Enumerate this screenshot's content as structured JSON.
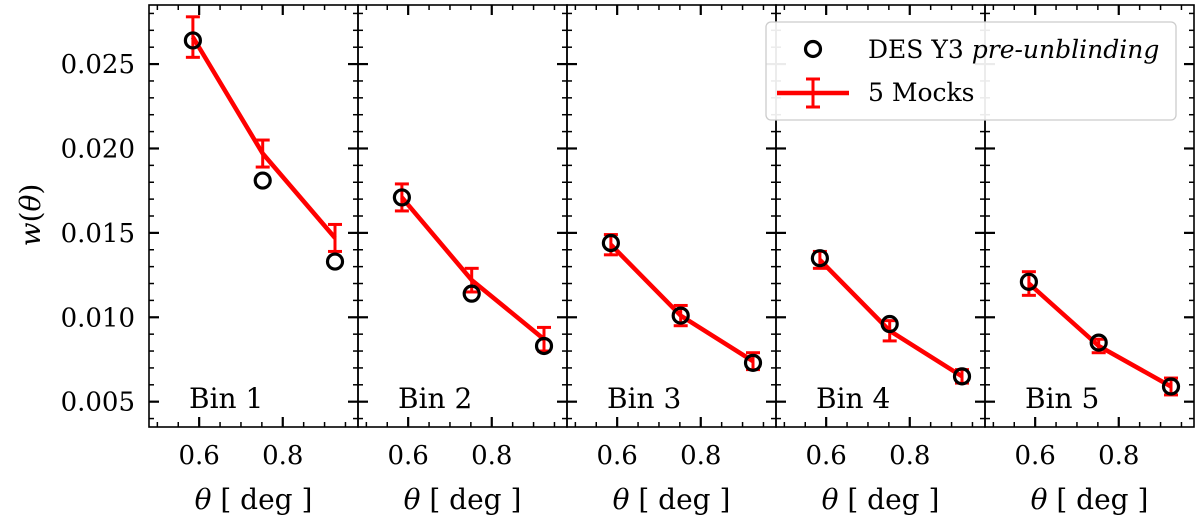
{
  "chart_data": {
    "type": "line",
    "ylabel_main": "w",
    "ylabel_arg": "θ",
    "xlabel_symbol": "θ",
    "xlabel_unit": "[ deg ]",
    "ylim": [
      0.0035,
      0.0285
    ],
    "xlim": [
      0.48,
      0.98
    ],
    "yticks": [
      0.005,
      0.01,
      0.015,
      0.02,
      0.025
    ],
    "ytick_labels": [
      "0.005",
      "0.010",
      "0.015",
      "0.020",
      "0.025"
    ],
    "xticks": [
      0.6,
      0.8
    ],
    "xtick_labels": [
      "0.6",
      "0.8"
    ],
    "legend": {
      "position": "top-right",
      "entries": [
        {
          "name": "DES Y3",
          "name_italic": "pre-unblinding",
          "color": "#000000",
          "marker": "open-circle"
        },
        {
          "name": "5 Mocks",
          "color": "#ff0000",
          "marker": "line-errorbar"
        }
      ]
    },
    "panels": [
      {
        "label": "Bin 1",
        "x": [
          0.585,
          0.752,
          0.925
        ],
        "observed": [
          0.0264,
          0.0181,
          0.0133
        ],
        "mock": [
          0.0266,
          0.0197,
          0.0147
        ],
        "mock_err": [
          0.0012,
          0.0008,
          0.0008
        ]
      },
      {
        "label": "Bin 2",
        "x": [
          0.585,
          0.752,
          0.925
        ],
        "observed": [
          0.0171,
          0.0114,
          0.0083
        ],
        "mock": [
          0.0171,
          0.0122,
          0.0087
        ],
        "mock_err": [
          0.0008,
          0.0007,
          0.0007
        ]
      },
      {
        "label": "Bin 3",
        "x": [
          0.585,
          0.752,
          0.925
        ],
        "observed": [
          0.0144,
          0.0101,
          0.0073
        ],
        "mock": [
          0.0143,
          0.0101,
          0.0074
        ],
        "mock_err": [
          0.0006,
          0.0006,
          0.0005
        ]
      },
      {
        "label": "Bin 4",
        "x": [
          0.585,
          0.752,
          0.925
        ],
        "observed": [
          0.0135,
          0.0096,
          0.0065
        ],
        "mock": [
          0.0134,
          0.0092,
          0.0065
        ],
        "mock_err": [
          0.0005,
          0.0006,
          0.0004
        ]
      },
      {
        "label": "Bin 5",
        "x": [
          0.585,
          0.752,
          0.925
        ],
        "observed": [
          0.0121,
          0.0085,
          0.0059
        ],
        "mock": [
          0.012,
          0.0083,
          0.0059
        ],
        "mock_err": [
          0.0007,
          0.0004,
          0.0005
        ]
      }
    ]
  }
}
